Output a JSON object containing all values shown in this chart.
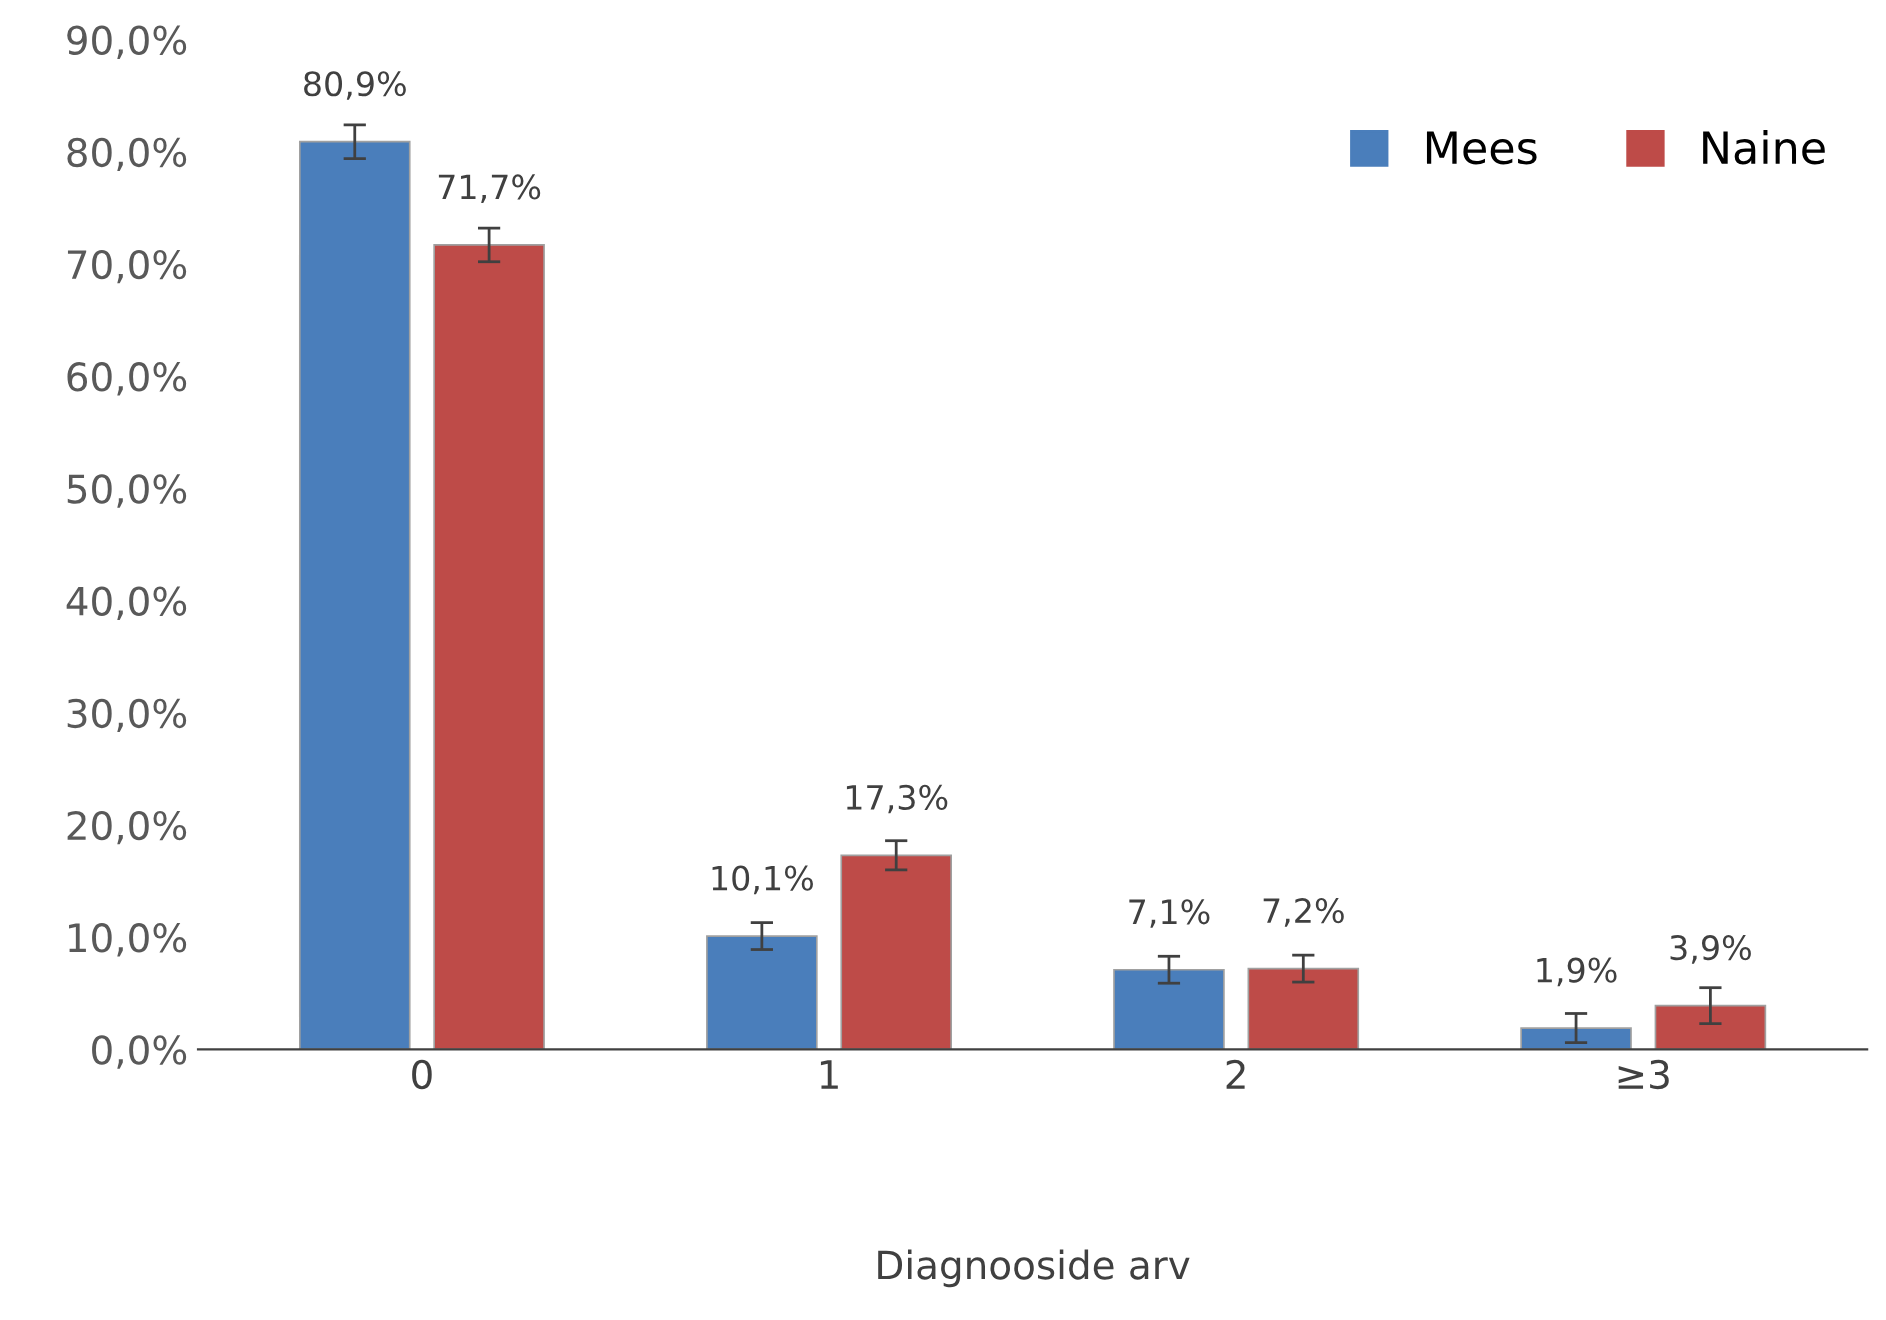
{
  "chart_data": {
    "type": "bar",
    "xlabel": "Diagnooside arv",
    "categories": [
      "0",
      "1",
      "2",
      "≥3"
    ],
    "series": [
      {
        "name": "Mees",
        "color": "#4a7ebb",
        "values": [
          80.9,
          10.1,
          7.1,
          1.9
        ],
        "errors": [
          1.5,
          1.2,
          1.2,
          1.3
        ],
        "value_labels": [
          "80,9%",
          "10,1%",
          "7,1%",
          "1,9%"
        ]
      },
      {
        "name": "Naine",
        "color": "#be4b48",
        "values": [
          71.7,
          17.3,
          7.2,
          3.9
        ],
        "errors": [
          1.5,
          1.3,
          1.2,
          1.6
        ],
        "value_labels": [
          "71,7%",
          "17,3%",
          "7,2%",
          "3,9%"
        ]
      }
    ],
    "ylim": [
      0,
      90
    ],
    "yticks": [
      {
        "value": 0,
        "label": "0,0%"
      },
      {
        "value": 10,
        "label": "10,0%"
      },
      {
        "value": 20,
        "label": "20,0%"
      },
      {
        "value": 30,
        "label": "30,0%"
      },
      {
        "value": 40,
        "label": "40,0%"
      },
      {
        "value": 50,
        "label": "50,0%"
      },
      {
        "value": 60,
        "label": "60,0%"
      },
      {
        "value": 70,
        "label": "70,0%"
      },
      {
        "value": 80,
        "label": "80,0%"
      },
      {
        "value": 90,
        "label": "90,0%"
      }
    ],
    "legend": "top right",
    "grid": false
  }
}
